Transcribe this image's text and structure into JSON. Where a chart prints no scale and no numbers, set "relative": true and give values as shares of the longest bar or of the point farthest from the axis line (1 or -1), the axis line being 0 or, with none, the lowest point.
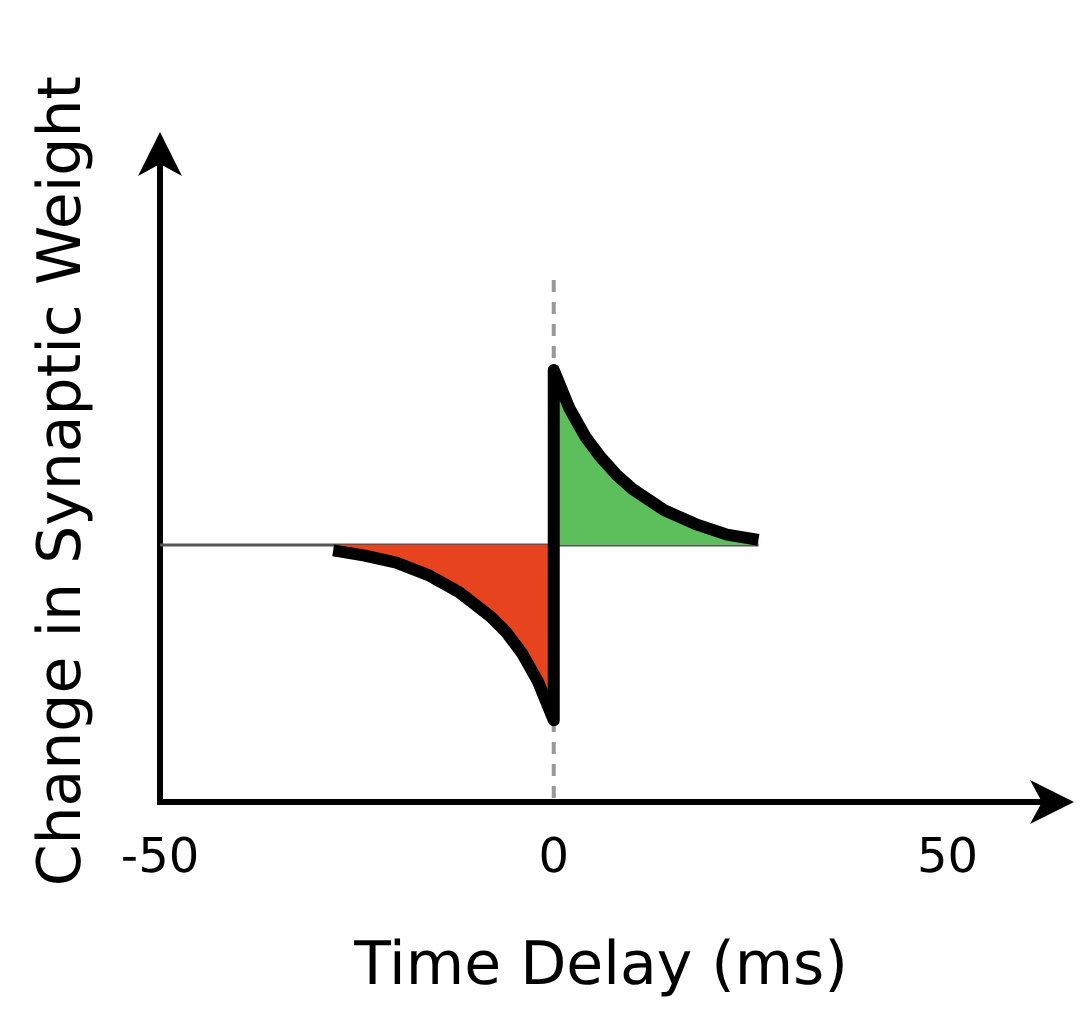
{
  "chart_data": {
    "type": "area",
    "relative": true,
    "xlabel": "Time Delay (ms)",
    "ylabel": "Change in Synaptic Weight",
    "xlim": [
      -50,
      62
    ],
    "xticks": [
      -50,
      0,
      50
    ],
    "grid": false,
    "legend": false,
    "marker": "none",
    "series": [
      {
        "color": "#e8431f",
        "x": [
          -28,
          -24,
          -20,
          -16,
          -12,
          -8,
          -6,
          -4,
          -2,
          0,
          0
        ],
        "values": [
          -0.03,
          -0.06,
          -0.1,
          -0.17,
          -0.27,
          -0.41,
          -0.5,
          -0.62,
          -0.78,
          -1,
          0
        ]
      },
      {
        "color": "#5cbf5c",
        "x": [
          0,
          0,
          2,
          4,
          6,
          8,
          10,
          14,
          18,
          22,
          26
        ],
        "values": [
          0,
          1,
          0.78,
          0.62,
          0.5,
          0.4,
          0.32,
          0.2,
          0.12,
          0.06,
          0.03
        ]
      }
    ],
    "ref_lines": [
      {
        "axis": "x",
        "value": 0,
        "color": "#999999",
        "line_style": "dashed"
      }
    ]
  }
}
